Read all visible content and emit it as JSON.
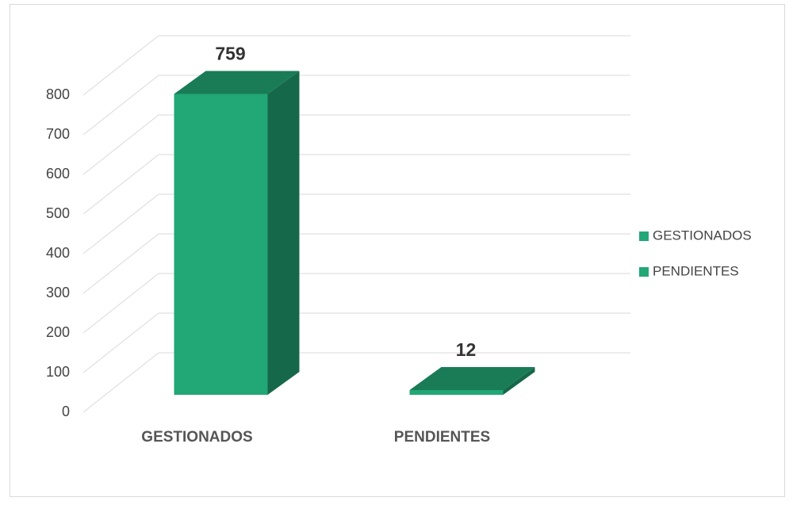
{
  "chart_data": {
    "type": "bar3d",
    "categories": [
      "GESTIONADOS",
      "PENDIENTES"
    ],
    "series": [
      {
        "name": "GESTIONADOS",
        "color": "#22a776",
        "values": [
          759,
          null
        ],
        "value_labels": [
          "759",
          null
        ]
      },
      {
        "name": "PENDIENTES",
        "color": "#22a776",
        "values": [
          null,
          12
        ],
        "value_labels": [
          null,
          "12"
        ]
      }
    ],
    "ylim": [
      0,
      800
    ],
    "yticks": [
      0,
      100,
      200,
      300,
      400,
      500,
      600,
      700,
      800
    ],
    "grid": true,
    "legend": "right"
  }
}
